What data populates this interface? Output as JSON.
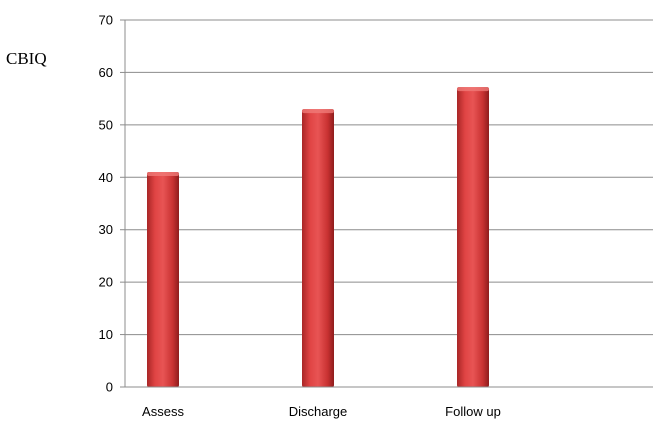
{
  "chart_data": {
    "type": "bar",
    "title": "",
    "xlabel": "",
    "ylabel": "CBIQ",
    "categories": [
      "Assess",
      "Discharge",
      "Follow up"
    ],
    "values": [
      41,
      53,
      57.2
    ],
    "ylim": [
      0,
      70
    ],
    "yticks": [
      0,
      10,
      20,
      30,
      40,
      50,
      60,
      70
    ],
    "grid": true,
    "legend": "none",
    "colors": {
      "bar_light": "#e85050",
      "bar_mid": "#d23a3a",
      "bar_dark": "#8e1c1c",
      "bar_top": "#f07a78",
      "gridline": "#8c8c8c",
      "axis": "#8c8c8c"
    }
  }
}
